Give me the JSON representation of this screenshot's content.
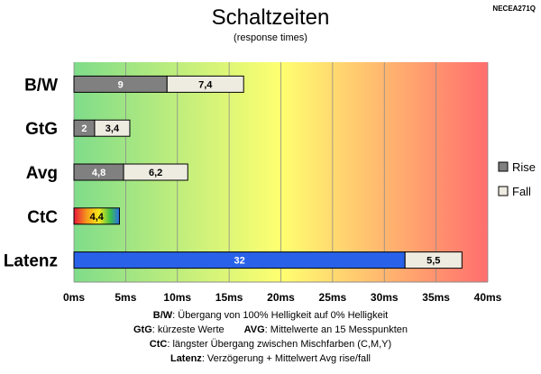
{
  "chart_data": {
    "type": "bar",
    "orientation": "horizontal",
    "stacked": true,
    "title": "Schaltzeiten",
    "subtitle": "(response times)",
    "corner_label": "NECEA271Q",
    "categories": [
      "B/W",
      "GtG",
      "Avg",
      "CtC",
      "Latenz"
    ],
    "series": [
      {
        "name": "Rise",
        "values": [
          9,
          2,
          4.8,
          4.4,
          32
        ],
        "labels": [
          "9",
          "2",
          "4,8",
          "4,4",
          "32"
        ],
        "color": "#808080"
      },
      {
        "name": "Fall",
        "values": [
          7.4,
          3.4,
          6.2,
          null,
          5.5
        ],
        "labels": [
          "7,4",
          "3,4",
          "6,2",
          "",
          "5,5"
        ],
        "color": "#eeece1"
      }
    ],
    "special_colors": {
      "CtC": "rainbow",
      "Latenz": "#2962e8"
    },
    "xlim": [
      0,
      40
    ],
    "xticks": [
      0,
      5,
      10,
      15,
      20,
      25,
      30,
      35,
      40
    ],
    "xtick_labels": [
      "0ms",
      "5ms",
      "10ms",
      "15ms",
      "20ms",
      "25ms",
      "30ms",
      "35ms",
      "40ms"
    ],
    "background_gradient": [
      "#7fdc8a",
      "#ffff70",
      "#ff6e6e"
    ],
    "grid": true,
    "legend_position": "right"
  },
  "notes": {
    "line1": {
      "key": "B/W",
      "text": ":  Übergang von 100% Helligkeit auf 0% Helligkeit"
    },
    "line2a": {
      "key": "GtG",
      "text": ": kürzeste  Werte"
    },
    "line2b": {
      "key": "AVG",
      "text": ": Mittelwerte  an 15 Messpunkten"
    },
    "line3": {
      "key": "CtC",
      "text": ": längster Übergang  zwischen Mischfarben (C,M,Y)"
    },
    "line4": {
      "key": "Latenz",
      "text": ": Verzögerung  + Mittelwert  Avg rise/fall"
    }
  }
}
